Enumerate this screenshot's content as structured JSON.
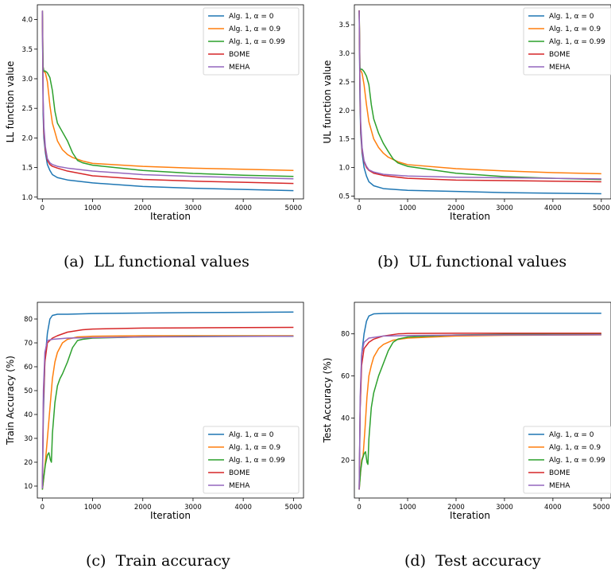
{
  "captions": [
    {
      "label": "(a)",
      "text": "LL functional values"
    },
    {
      "label": "(b)",
      "text": "UL functional values"
    },
    {
      "label": "(c)",
      "text": "Train accuracy"
    },
    {
      "label": "(d)",
      "text": "Test accuracy"
    }
  ],
  "legend_entries": [
    "Alg. 1, α = 0",
    "Alg. 1, α = 0.9",
    "Alg. 1, α = 0.99",
    "BOME",
    "MEHA"
  ],
  "series_colors": [
    "#1f77b4",
    "#ff7f0e",
    "#2ca02c",
    "#d62728",
    "#9467bd"
  ],
  "chart_data": [
    {
      "type": "line",
      "title": "",
      "xlabel": "Iteration",
      "ylabel": "LL function value",
      "xlim": [
        -100,
        5200
      ],
      "ylim": [
        0.97,
        4.25
      ],
      "xticks": [
        0,
        1000,
        2000,
        3000,
        4000,
        5000
      ],
      "yticks": [
        1.0,
        1.5,
        2.0,
        2.5,
        3.0,
        3.5,
        4.0
      ],
      "legend_position": "top-right",
      "series": [
        {
          "name": "Alg. 1, α = 0",
          "x": [
            0,
            15,
            30,
            60,
            100,
            150,
            200,
            300,
            500,
            1000,
            2000,
            3000,
            4000,
            5000
          ],
          "y": [
            4.15,
            2.4,
            2.0,
            1.75,
            1.55,
            1.45,
            1.38,
            1.33,
            1.29,
            1.24,
            1.18,
            1.15,
            1.13,
            1.11
          ]
        },
        {
          "name": "Alg. 1, α = 0.9",
          "x": [
            0,
            15,
            30,
            60,
            100,
            150,
            200,
            300,
            400,
            500,
            600,
            800,
            1000,
            2000,
            3000,
            4000,
            5000
          ],
          "y": [
            4.15,
            3.2,
            3.12,
            3.1,
            2.95,
            2.55,
            2.25,
            1.95,
            1.8,
            1.72,
            1.67,
            1.61,
            1.57,
            1.52,
            1.49,
            1.47,
            1.45
          ]
        },
        {
          "name": "Alg. 1, α = 0.99",
          "x": [
            0,
            15,
            30,
            60,
            100,
            150,
            200,
            250,
            300,
            400,
            500,
            600,
            700,
            800,
            1000,
            2000,
            3000,
            4000,
            5000
          ],
          "y": [
            4.15,
            3.2,
            3.13,
            3.13,
            3.1,
            3.02,
            2.8,
            2.45,
            2.25,
            2.1,
            1.95,
            1.75,
            1.62,
            1.58,
            1.54,
            1.45,
            1.4,
            1.37,
            1.35
          ]
        },
        {
          "name": "BOME",
          "x": [
            0,
            15,
            30,
            60,
            100,
            150,
            200,
            300,
            500,
            1000,
            2000,
            3000,
            4000,
            5000
          ],
          "y": [
            4.15,
            2.6,
            2.1,
            1.8,
            1.62,
            1.55,
            1.52,
            1.49,
            1.44,
            1.36,
            1.3,
            1.27,
            1.25,
            1.23
          ]
        },
        {
          "name": "MEHA",
          "x": [
            0,
            15,
            30,
            60,
            100,
            150,
            200,
            300,
            500,
            1000,
            2000,
            3000,
            4000,
            5000
          ],
          "y": [
            4.15,
            2.7,
            2.2,
            1.85,
            1.65,
            1.58,
            1.55,
            1.52,
            1.49,
            1.44,
            1.38,
            1.35,
            1.33,
            1.31
          ]
        }
      ]
    },
    {
      "type": "line",
      "title": "",
      "xlabel": "Iteration",
      "ylabel": "UL function value",
      "xlim": [
        -100,
        5200
      ],
      "ylim": [
        0.45,
        3.85
      ],
      "xticks": [
        0,
        1000,
        2000,
        3000,
        4000,
        5000
      ],
      "yticks": [
        0.5,
        1.0,
        1.5,
        2.0,
        2.5,
        3.0,
        3.5
      ],
      "legend_position": "top-right",
      "series": [
        {
          "name": "Alg. 1, α = 0",
          "x": [
            0,
            15,
            30,
            60,
            100,
            150,
            200,
            300,
            500,
            1000,
            2000,
            3000,
            4000,
            5000
          ],
          "y": [
            3.75,
            2.2,
            1.6,
            1.25,
            1.0,
            0.85,
            0.75,
            0.68,
            0.63,
            0.6,
            0.58,
            0.56,
            0.55,
            0.54
          ]
        },
        {
          "name": "Alg. 1, α = 0.9",
          "x": [
            0,
            15,
            30,
            60,
            100,
            150,
            200,
            300,
            400,
            500,
            600,
            800,
            1000,
            2000,
            3000,
            4000,
            5000
          ],
          "y": [
            3.75,
            2.75,
            2.7,
            2.65,
            2.45,
            2.1,
            1.8,
            1.5,
            1.35,
            1.25,
            1.18,
            1.1,
            1.05,
            0.98,
            0.94,
            0.91,
            0.89
          ]
        },
        {
          "name": "Alg. 1, α = 0.99",
          "x": [
            0,
            15,
            30,
            60,
            100,
            150,
            200,
            250,
            300,
            400,
            500,
            600,
            700,
            800,
            1000,
            2000,
            3000,
            4000,
            5000
          ],
          "y": [
            3.75,
            2.75,
            2.72,
            2.72,
            2.68,
            2.6,
            2.45,
            2.1,
            1.85,
            1.6,
            1.42,
            1.28,
            1.15,
            1.08,
            1.02,
            0.9,
            0.84,
            0.81,
            0.79
          ]
        },
        {
          "name": "BOME",
          "x": [
            0,
            15,
            30,
            60,
            100,
            150,
            200,
            300,
            500,
            1000,
            2000,
            3000,
            4000,
            5000
          ],
          "y": [
            3.75,
            2.4,
            1.7,
            1.3,
            1.1,
            1.0,
            0.95,
            0.9,
            0.86,
            0.81,
            0.78,
            0.77,
            0.76,
            0.75
          ]
        },
        {
          "name": "MEHA",
          "x": [
            0,
            15,
            30,
            60,
            100,
            150,
            200,
            300,
            500,
            1000,
            2000,
            3000,
            4000,
            5000
          ],
          "y": [
            3.75,
            2.5,
            1.8,
            1.35,
            1.12,
            1.02,
            0.96,
            0.92,
            0.88,
            0.85,
            0.83,
            0.82,
            0.81,
            0.8
          ]
        }
      ]
    },
    {
      "type": "line",
      "title": "",
      "xlabel": "Iteration",
      "ylabel": "Train Accuracy (%)",
      "xlim": [
        -100,
        5200
      ],
      "ylim": [
        5,
        87
      ],
      "xticks": [
        0,
        1000,
        2000,
        3000,
        4000,
        5000
      ],
      "yticks": [
        10,
        20,
        30,
        40,
        50,
        60,
        70,
        80
      ],
      "legend_position": "bottom-right",
      "series": [
        {
          "name": "Alg. 1, α = 0",
          "x": [
            0,
            20,
            50,
            100,
            150,
            200,
            300,
            500,
            1000,
            2000,
            3000,
            4000,
            5000
          ],
          "y": [
            9,
            40,
            62,
            74,
            80,
            81.5,
            82,
            82,
            82.3,
            82.5,
            82.7,
            82.8,
            82.9
          ]
        },
        {
          "name": "Alg. 1, α = 0.9",
          "x": [
            0,
            20,
            50,
            80,
            120,
            160,
            200,
            250,
            300,
            400,
            500,
            700,
            1000,
            2000,
            3000,
            4000,
            5000
          ],
          "y": [
            8.5,
            12,
            18,
            25,
            35,
            45,
            55,
            62,
            66,
            70,
            71.5,
            72.5,
            72.8,
            73,
            73,
            73,
            73
          ]
        },
        {
          "name": "Alg. 1, α = 0.99",
          "x": [
            0,
            30,
            60,
            100,
            130,
            160,
            180,
            200,
            250,
            300,
            350,
            400,
            500,
            600,
            700,
            800,
            1000,
            2000,
            3000,
            4000,
            5000
          ],
          "y": [
            8.5,
            14,
            19,
            23,
            24,
            21,
            20,
            32,
            45,
            52,
            55,
            57,
            62,
            68,
            71,
            71.5,
            72,
            72.5,
            72.7,
            72.8,
            72.8
          ]
        },
        {
          "name": "BOME",
          "x": [
            0,
            20,
            50,
            100,
            200,
            300,
            500,
            800,
            1000,
            2000,
            3000,
            4000,
            5000
          ],
          "y": [
            9,
            45,
            62,
            70,
            72,
            73,
            74.5,
            75.5,
            75.8,
            76.2,
            76.3,
            76.4,
            76.5
          ]
        },
        {
          "name": "MEHA",
          "x": [
            0,
            20,
            50,
            100,
            200,
            500,
            1000,
            2000,
            3000,
            4000,
            5000
          ],
          "y": [
            9,
            50,
            66,
            71,
            71.5,
            72,
            72.2,
            72.5,
            72.6,
            72.7,
            72.8
          ]
        }
      ]
    },
    {
      "type": "line",
      "title": "",
      "xlabel": "Iteration",
      "ylabel": "Test Accuracy (%)",
      "xlim": [
        -100,
        5200
      ],
      "ylim": [
        2,
        95
      ],
      "xticks": [
        0,
        1000,
        2000,
        3000,
        4000,
        5000
      ],
      "yticks": [
        20,
        40,
        60,
        80
      ],
      "legend_position": "bottom-right",
      "series": [
        {
          "name": "Alg. 1, α = 0",
          "x": [
            0,
            20,
            50,
            100,
            150,
            200,
            300,
            500,
            1000,
            2000,
            3000,
            4000,
            5000
          ],
          "y": [
            6,
            45,
            70,
            80,
            86,
            88.5,
            89.5,
            89.7,
            89.8,
            89.8,
            89.8,
            89.8,
            89.8
          ]
        },
        {
          "name": "Alg. 1, α = 0.9",
          "x": [
            0,
            20,
            50,
            80,
            120,
            160,
            200,
            250,
            300,
            400,
            500,
            700,
            1000,
            2000,
            3000,
            4000,
            5000
          ],
          "y": [
            6,
            12,
            20,
            22,
            35,
            50,
            60,
            65,
            69,
            73,
            75,
            77,
            78,
            79,
            79.3,
            79.4,
            79.5
          ]
        },
        {
          "name": "Alg. 1, α = 0.99",
          "x": [
            0,
            30,
            60,
            100,
            130,
            160,
            180,
            200,
            250,
            300,
            350,
            400,
            500,
            600,
            700,
            800,
            1000,
            2000,
            3000,
            4000,
            5000
          ],
          "y": [
            6,
            15,
            20,
            23,
            24,
            19,
            18,
            30,
            45,
            52,
            56,
            60,
            66,
            72,
            76,
            77.5,
            78.5,
            79.5,
            79.8,
            80,
            80
          ]
        },
        {
          "name": "BOME",
          "x": [
            0,
            20,
            50,
            100,
            200,
            300,
            500,
            800,
            1000,
            2000,
            3000,
            4000,
            5000
          ],
          "y": [
            6,
            45,
            65,
            73,
            76,
            77.5,
            79,
            80,
            80.2,
            80.3,
            80.3,
            80.3,
            80.3
          ]
        },
        {
          "name": "MEHA",
          "x": [
            0,
            20,
            50,
            100,
            200,
            500,
            1000,
            2000,
            3000,
            4000,
            5000
          ],
          "y": [
            6,
            50,
            70,
            76,
            78,
            79,
            79.2,
            79.4,
            79.5,
            79.5,
            79.6
          ]
        }
      ]
    }
  ]
}
